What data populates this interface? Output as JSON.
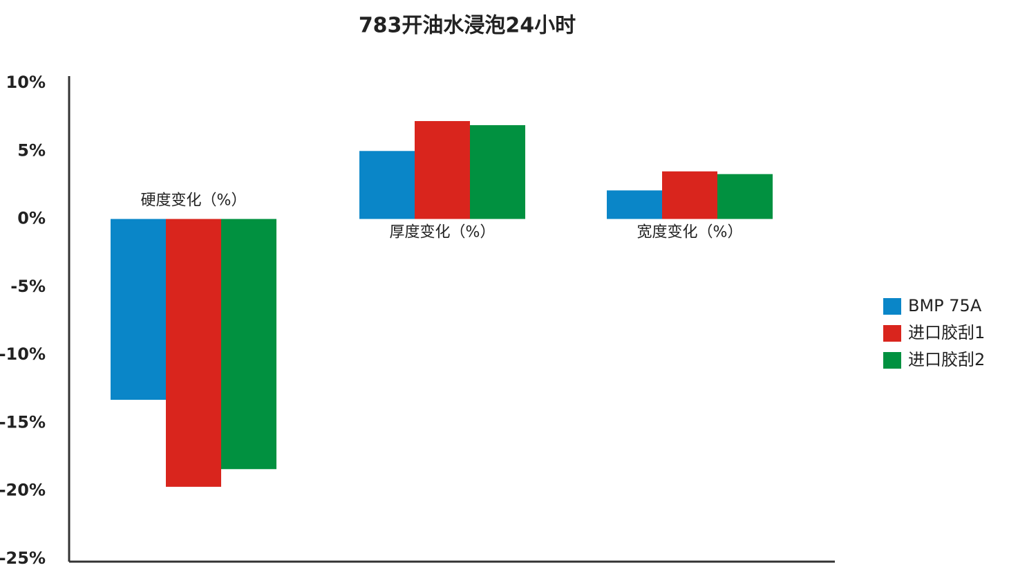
{
  "chart_data": {
    "type": "bar",
    "title": "783开油水浸泡24小时",
    "categories": [
      "硬度变化（%）",
      "厚度变化（%）",
      "宽度变化（%）"
    ],
    "series": [
      {
        "name": "BMP 75A",
        "color": "#0a86c8",
        "values": [
          -13.3,
          5.0,
          2.1
        ]
      },
      {
        "name": "进口胶刮1",
        "color": "#d9251d",
        "values": [
          -19.7,
          7.2,
          3.5
        ]
      },
      {
        "name": "进口胶刮2",
        "color": "#019140",
        "values": [
          -18.4,
          6.9,
          3.3
        ]
      }
    ],
    "ylim": [
      -25,
      10
    ],
    "yticks": [
      {
        "value": 10,
        "label": "10%"
      },
      {
        "value": 5,
        "label": "5%"
      },
      {
        "value": 0,
        "label": "0%"
      },
      {
        "value": -5,
        "label": "-5%"
      },
      {
        "value": -10,
        "label": "-10%"
      },
      {
        "value": -15,
        "label": "-15%"
      },
      {
        "value": -20,
        "label": "-20%"
      },
      {
        "value": -25,
        "label": "-25%"
      }
    ],
    "legend": "right"
  }
}
